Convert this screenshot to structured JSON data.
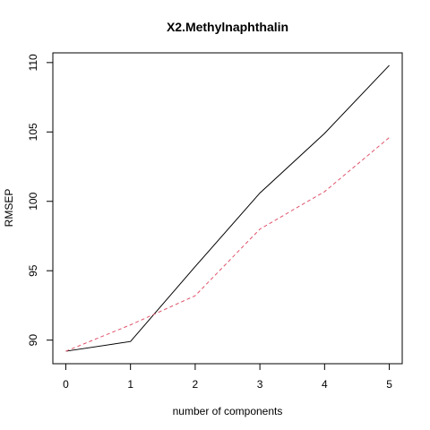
{
  "chart_data": {
    "type": "line",
    "title": "X2.Methylnaphthalin",
    "xlabel": "number of components",
    "ylabel": "RMSEP",
    "x": [
      0,
      1,
      2,
      3,
      4,
      5
    ],
    "xlim": [
      0,
      5
    ],
    "ylim": [
      88.3,
      110.7
    ],
    "x_ticks": [
      0,
      1,
      2,
      3,
      4,
      5
    ],
    "y_ticks": [
      90,
      95,
      100,
      105,
      110
    ],
    "grid": false,
    "series": [
      {
        "values": [
          89.2,
          89.9,
          95.3,
          100.6,
          104.9,
          109.8
        ],
        "color": "#000000",
        "style": "solid"
      },
      {
        "values": [
          89.2,
          91.1,
          93.2,
          98.0,
          100.7,
          104.6
        ],
        "color": "#DF536B",
        "style": "dashed"
      }
    ]
  }
}
